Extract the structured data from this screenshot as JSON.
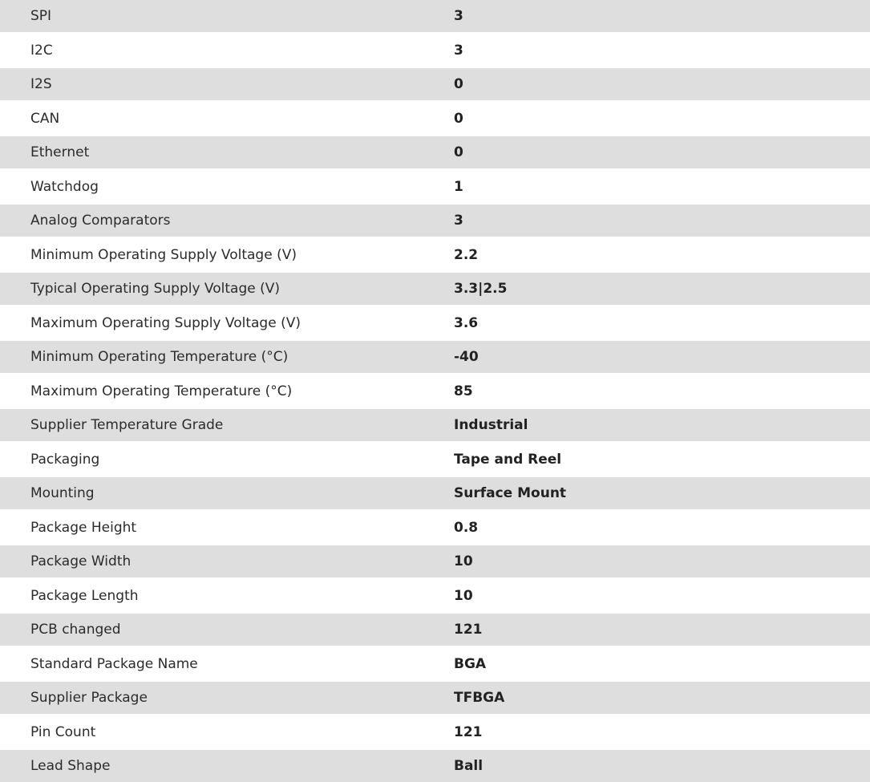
{
  "specs": [
    {
      "label": "SPI",
      "value": "3"
    },
    {
      "label": "I2C",
      "value": "3"
    },
    {
      "label": "I2S",
      "value": "0"
    },
    {
      "label": "CAN",
      "value": "0"
    },
    {
      "label": "Ethernet",
      "value": "0"
    },
    {
      "label": "Watchdog",
      "value": "1"
    },
    {
      "label": "Analog Comparators",
      "value": "3"
    },
    {
      "label": "Minimum Operating Supply Voltage (V)",
      "value": "2.2"
    },
    {
      "label": "Typical Operating Supply Voltage (V)",
      "value": "3.3|2.5"
    },
    {
      "label": "Maximum Operating Supply Voltage (V)",
      "value": "3.6"
    },
    {
      "label": "Minimum Operating Temperature (°C)",
      "value": "-40"
    },
    {
      "label": "Maximum Operating Temperature (°C)",
      "value": "85"
    },
    {
      "label": "Supplier Temperature Grade",
      "value": "Industrial"
    },
    {
      "label": "Packaging",
      "value": "Tape and Reel"
    },
    {
      "label": "Mounting",
      "value": "Surface Mount"
    },
    {
      "label": "Package Height",
      "value": "0.8"
    },
    {
      "label": "Package Width",
      "value": "10"
    },
    {
      "label": "Package Length",
      "value": "10"
    },
    {
      "label": "PCB changed",
      "value": "121"
    },
    {
      "label": "Standard Package Name",
      "value": "BGA"
    },
    {
      "label": "Supplier Package",
      "value": "TFBGA"
    },
    {
      "label": "Pin Count",
      "value": "121"
    },
    {
      "label": "Lead Shape",
      "value": "Ball"
    }
  ],
  "colors": {
    "stripe": "#dedede",
    "text": "#2b2b2b"
  }
}
